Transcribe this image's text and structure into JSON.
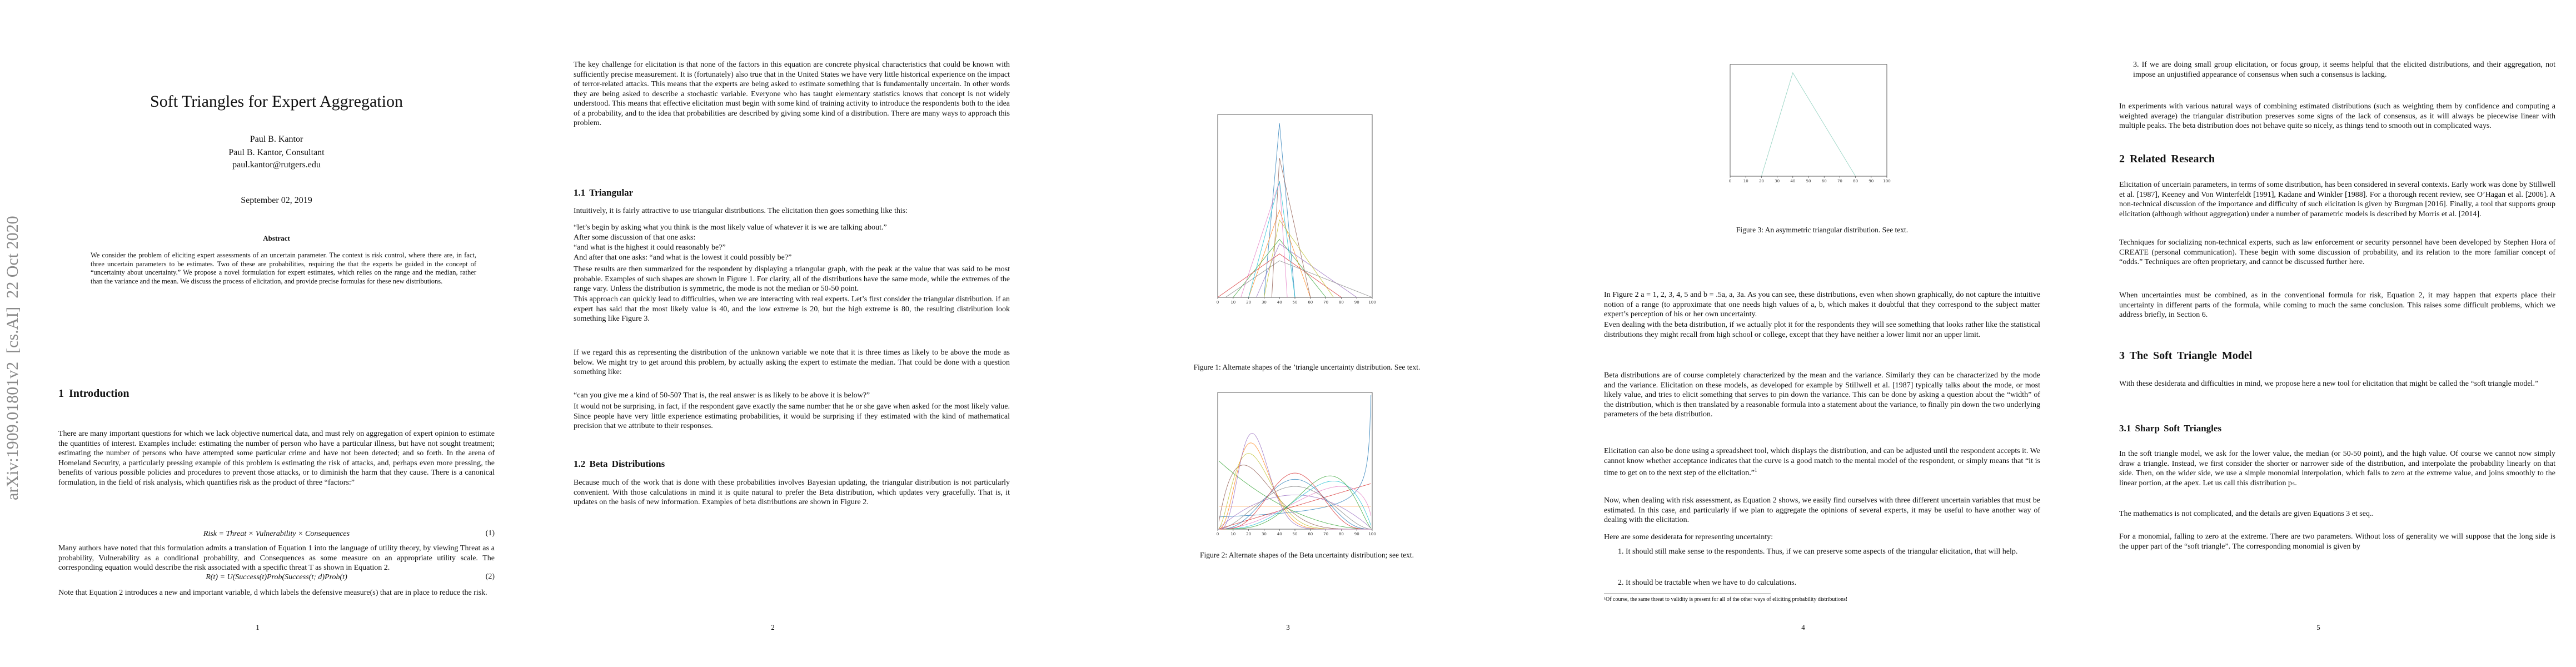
{
  "arxiv_stamp": "arXiv:1909.01801v2  [cs.AI]  22 Oct 2020",
  "pages": [
    {
      "title": "Soft Triangles for Expert Aggregation",
      "authors": [
        "Paul B. Kantor",
        "Paul B. Kantor, Consultant",
        "paul.kantor@rutgers.edu"
      ],
      "date": "September 02, 2019",
      "abstract_heading": "Abstract",
      "abstract": "We consider the problem of eliciting expert assessments of an uncertain parameter. The context is risk control, where there are, in fact, three uncertain parameters to be estimates. Two of these are probabilities, requiring the that the experts be guided in the concept of “uncertainty about uncertainty.” We propose a novel formulation for expert estimates, which relies on the range and the median, rather than the variance and the mean. We discuss the process of elicitation, and provide precise formulas for these new distributions.",
      "blocks": [
        "1   Introduction",
        "There are many important questions for which we lack objective numerical data, and must rely on aggregation of expert opinion to estimate the quantities of interest. Examples include: estimating the number of person who have a particular illness, but have not sought treatment; estimating the number of persons who have attempted some particular crime and have not been detected; and so forth. In the arena of Homeland Security, a particularly pressing example of this problem is estimating the risk of attacks, and, perhaps even more pressing, the benefits of various possible policies and procedures to prevent those attacks, or to diminish the harm that they cause. There is a canonical formulation, in the field of risk analysis, which quantifies risk as the product of three “factors:”",
        "Many authors have noted that this formulation admits a translation of Equation 1 into the language of utility theory, by viewing Threat as a probability, Vulnerability as a conditional probability, and Consequences as some measure on an appropriate utility scale. The corresponding equation would describe the risk associated with a specific threat T as shown in Equation 2.",
        "Note that Equation 2 introduces a new and important variable, d which labels the defensive measure(s) that are in place to reduce the risk."
      ],
      "equations": [
        {
          "formula": "Risk = Threat × Vulnerability × Consequences",
          "number": "(1)"
        },
        {
          "formula": "R(t) = U(Success(t)Prob(Success(t; d)Prob(t)",
          "number": "(2)"
        }
      ],
      "page_number": 1
    },
    {
      "blocks": [
        "The key challenge for elicitation is that none of the factors in this equation are concrete physical characteristics that could be known with sufficiently precise measurement. It is (fortunately) also true that in the United States we have very little historical experience on the impact of terror-related attacks. This means that the experts are being asked to estimate something that is fundamentally uncertain. In other words they are being asked to describe a stochastic variable. Everyone who has taught elementary statistics knows that concept is not widely understood. This means that effective elicitation must begin with some kind of training activity to introduce the respondents both to the idea of a probability, and to the idea that probabilities are described by giving some kind of a distribution. There are many ways to approach this problem.",
        "1.1   Triangular",
        "Intuitively, it is fairly attractive to use triangular distributions. The elicitation then goes something like this:",
        "“let’s begin by asking what you think is the most likely value of whatever it is we are talking about.”",
        "After some discussion of that one asks:",
        "“and what is the highest it could reasonably be?”",
        "And after that one asks: “and what is the lowest it could possibly be?”",
        "These results are then summarized for the respondent by displaying a triangular graph, with the peak at the value that was said to be most probable. Examples of such shapes are shown in Figure 1. For clarity, all of the distributions have the same mode, while the extremes of the range vary. Unless the distribution is symmetric, the mode is not the median or 50-50 point.",
        "This approach can quickly lead to difficulties, when we are interacting with real experts. Let’s first consider the triangular distribution. if an expert has said that the most likely value is 40, and the low extreme is 20, but the high extreme is 80, the resulting distribution look something like Figure 3.",
        "If we regard this as representing the distribution of the unknown variable we note that it is three times as likely to be above the mode as below. We might try to get around this problem, by actually asking the expert to estimate the median. That could be done with a question something like:",
        "“can you give me a kind of 50-50? That is, the real answer is as likely to be above it is below?”",
        "It would not be surprising, in fact, if the respondent gave exactly the same number that he or she gave when asked for the most likely value. Since people have very little experience estimating probabilities, it would be surprising if they estimated with the kind of mathematical precision that we attribute to their responses.",
        "1.2   Beta Distributions",
        "Because much of the work that is done with these probabilities involves Bayesian updating, the triangular distribution is not particularly convenient. With those calculations in mind it is quite natural to prefer the Beta distribution, which updates very gracefully. That is, it updates on the basis of new information. Examples of beta distributions are shown in Figure 2."
      ],
      "page_number": 2
    },
    {
      "figures": [
        {
          "caption": "Figure 1: Alternate shapes of the ’triangle uncertainty distribution. See text.",
          "xticks": [
            0,
            10,
            20,
            30,
            40,
            50,
            60,
            70,
            80,
            90,
            100
          ]
        },
        {
          "caption": "Figure 2: Alternate shapes of the Beta uncertainty distribution; see text.",
          "xticks": [
            0,
            10,
            20,
            30,
            40,
            50,
            60,
            70,
            80,
            90,
            100
          ]
        }
      ],
      "page_number": 3
    },
    {
      "figures": [
        {
          "caption": "Figure 3: An asymmetric triangular distribution. See text.",
          "xticks": [
            0,
            10,
            20,
            30,
            40,
            50,
            60,
            70,
            80,
            90,
            100
          ]
        }
      ],
      "blocks": [
        "In Figure 2 a = 1, 2, 3, 4, 5 and b = .5a, a, 3a. As you can see, these distributions, even when shown graphically, do not capture the intuitive notion of a range (to approximate that one needs high values of a, b, which makes it doubtful that they correspond to the subject matter expert’s perception of his or her own uncertainty.",
        "Even dealing with the beta distribution, if we actually plot it for the respondents they will see something that looks rather like the statistical distributions they might recall from high school or college, except that they have neither a lower limit nor an upper limit.",
        "Beta distributions are of course completely characterized by the mean and the variance. Similarly they can be characterized by the mode and the variance. Elicitation on these models, as developed for example by Stillwell et al. [1987] typically talks about the mode, or most likely value, and tries to elicit something that serves to pin down the variance. This can be done by asking a question about the “width” of the distribution, which is then translated by a reasonable formula into a statement about the variance, to finally pin down the two underlying parameters of the beta distribution.",
        "Elicitation can also be done using a spreadsheet tool, which displays the distribution, and can be adjusted until the respondent accepts it. We cannot know whether acceptance indicates that the curve is a good match to the mental model of the respondent, or simply means that “it is time to get on to the next step of the elicitation.”",
        "Now, when dealing with risk assessment, as Equation 2 shows, we easily find ourselves with three different uncertain variables that must be estimated. In this case, and particularly if we plan to aggregate the opinions of several experts, it may be useful to have another way of dealing with the elicitation.",
        "Here are some desiderata for representing uncertainty:",
        "1. It should still make sense to the respondents. Thus, if we can preserve some aspects of the triangular elicitation, that will help.",
        "2. It should be tractable when we have to do calculations."
      ],
      "footnote_mark": 1,
      "footnote": "¹Of course, the same threat to validity is present for all of the other ways of eliciting probability distributions!",
      "page_number": 4
    },
    {
      "blocks": [
        "3. If we are doing small group elicitation, or focus group, it seems helpful that the elicited distributions, and their aggregation, not impose an unjustified appearance of consensus when such a consensus is lacking.",
        "In experiments with various natural ways of combining estimated distributions (such as weighting them by confidence and computing a weighted average) the triangular distribution preserves some signs of the lack of consensus, as it will always be piecewise linear with multiple peaks. The beta distribution does not behave quite so nicely, as things tend to smooth out in complicated ways.",
        "2   Related Research",
        "Elicitation of uncertain parameters, in terms of some distribution, has been considered in several contexts. Early work was done by Stillwell et al. [1987], Keeney and Von Winterfeldt [1991], Kadane and Winkler [1988]. For a thorough recent review, see O’Hagan et al. [2006]. A non-technical discussion of the importance and difficulty of such elicitation is given by Burgman [2016]. Finally, a tool that supports group elicitation (although without aggregation) under a number of parametric models is described by Morris et al. [2014].",
        "Techniques for socializing non-technical experts, such as law enforcement or security personnel have been developed by Stephen Hora of CREATE (personal communication). These begin with some discussion of probability, and its relation to the more familiar concept of “odds.” Techniques are often proprietary, and cannot be discussed further here.",
        "When uncertainties must be combined, as in the conventional formula for risk, Equation 2, it may happen that experts place their uncertainty in different parts of the formula, while coming to much the same conclusion. This raises some difficult problems, which we address briefly, in Section 6.",
        "3   The Soft Triangle Model",
        "With these desiderata and difficulties in mind, we propose here a new tool for elicitation that might be called the “soft triangle model.”",
        "3.1   Sharp Soft Triangles",
        "In the soft triangle model, we ask for the lower value, the median (or 50-50 point), and the high value. Of course we cannot now simply draw a triangle. Instead, we first consider the shorter or narrower side of the distribution, and interpolate the probability linearly on that side. Then, on the wider side, we use a simple monomial interpolation, which falls to zero at the extreme value, and joins smoothly to the linear portion, at the apex. Let us call this distribution pₛ.",
        "The mathematics is not complicated, and the details are given Equations 3 et seq..",
        "For a monomial, falling to zero at the extreme. There are two parameters. Without loss of generality we will suppose that the long side is the upper part of the “soft triangle”. The corresponding monomial is given by"
      ],
      "page_number": 5
    }
  ]
}
